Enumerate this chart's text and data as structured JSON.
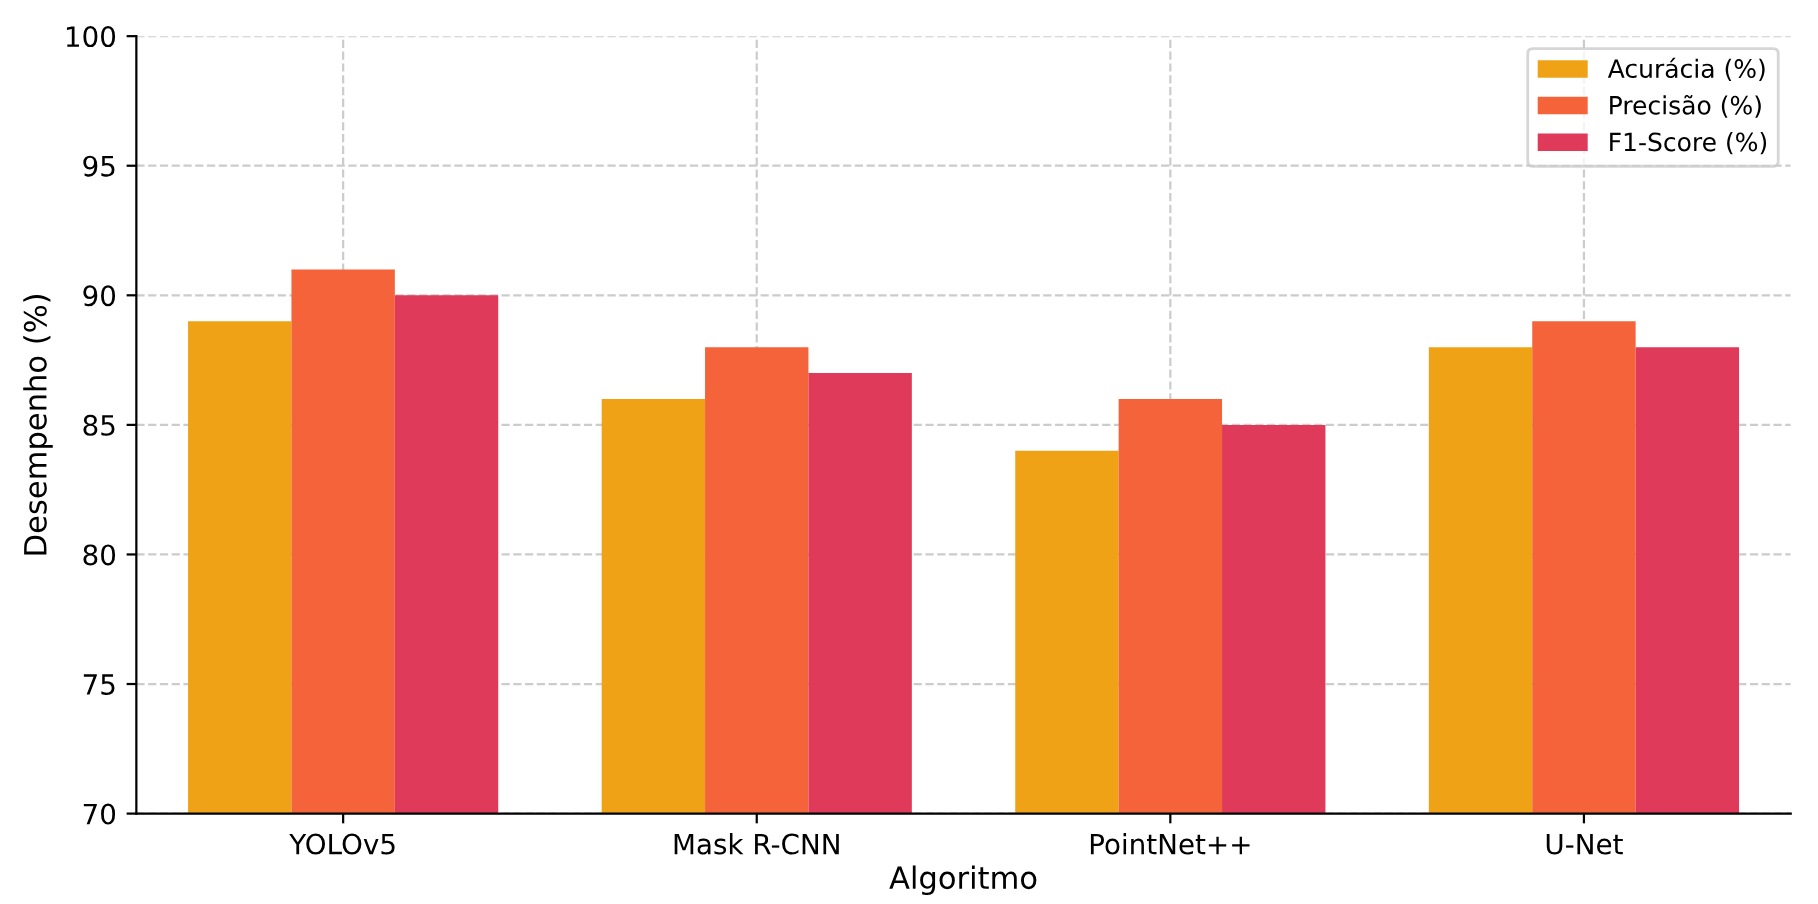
{
  "chart_data": {
    "type": "bar",
    "xlabel": "Algoritmo",
    "ylabel": "Desempenho (%)",
    "categories": [
      "YOLOv5",
      "Mask R-CNN",
      "PointNet++",
      "U-Net"
    ],
    "series": [
      {
        "name": "Acurácia (%)",
        "color": "#f0a216",
        "values": [
          89,
          86,
          84,
          88
        ]
      },
      {
        "name": "Precisão (%)",
        "color": "#f5633b",
        "values": [
          91,
          88,
          86,
          89
        ]
      },
      {
        "name": "F1-Score (%)",
        "color": "#e03a5a",
        "values": [
          90,
          87,
          85,
          88
        ]
      }
    ],
    "ylim": [
      70,
      100
    ],
    "yticks": [
      70,
      75,
      80,
      85,
      90,
      95,
      100
    ],
    "grid": true,
    "legend": "top right"
  }
}
